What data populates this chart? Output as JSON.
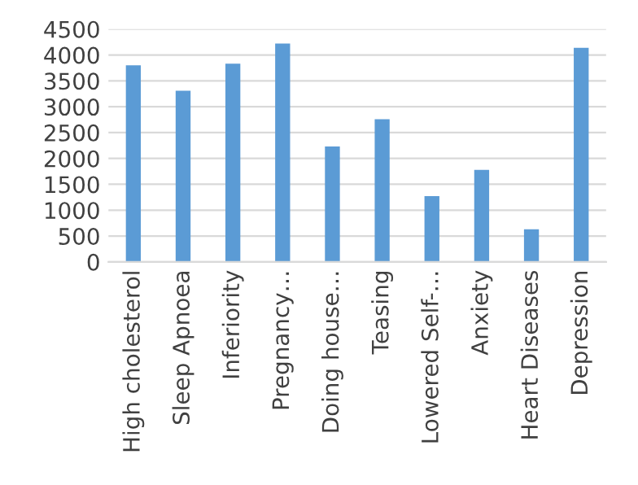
{
  "chart_data": {
    "type": "bar",
    "categories": [
      "High cholesterol",
      "Sleep Apnoea",
      "Inferiority",
      "Pregnancy…",
      "Doing house…",
      "Teasing",
      "Lowered Self-…",
      "Anxiety",
      "Heart Diseases",
      "Depression"
    ],
    "values": [
      3800,
      3310,
      3830,
      4220,
      2230,
      2760,
      1270,
      1780,
      630,
      4140
    ],
    "color": "#5b9bd5",
    "ylim": [
      0,
      4500
    ],
    "yticks": [
      0,
      500,
      1000,
      1500,
      2000,
      2500,
      3000,
      3500,
      4000,
      4500
    ],
    "grid": "y"
  }
}
